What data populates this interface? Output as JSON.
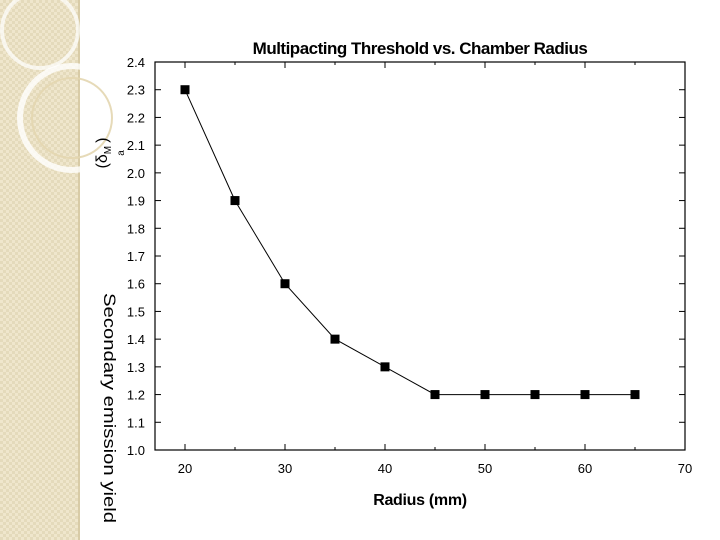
{
  "chart_data": {
    "type": "line",
    "title": "Multipacting Threshold vs. Chamber Radius",
    "xlabel": "Radius (mm)",
    "ylabel": "(δ",
    "ylabel_sub": "M",
    "ylabel_sup": "a",
    "ylabel_close": ")",
    "overlay_label": "Secondary emission yield",
    "xlim": [
      17,
      70
    ],
    "ylim": [
      1.0,
      2.4
    ],
    "x_ticks": [
      20,
      30,
      40,
      50,
      60,
      70
    ],
    "y_ticks": [
      1.0,
      1.1,
      1.2,
      1.3,
      1.4,
      1.5,
      1.6,
      1.7,
      1.8,
      1.9,
      2.0,
      2.1,
      2.2,
      2.3,
      2.4
    ],
    "x_tick_labels": [
      "20",
      "30",
      "40",
      "50",
      "60",
      "70"
    ],
    "y_tick_labels": [
      "1.0",
      "1.1",
      "1.2",
      "1.3",
      "1.4",
      "1.5",
      "1.6",
      "1.7",
      "1.8",
      "1.9",
      "2.0",
      "2.1",
      "2.2",
      "2.3",
      "2.4"
    ],
    "series": [
      {
        "x": [
          20,
          25,
          30,
          35,
          40,
          45,
          50,
          55,
          60,
          65
        ],
        "y": [
          2.3,
          1.9,
          1.6,
          1.4,
          1.3,
          1.2,
          1.2,
          1.2,
          1.2,
          1.2
        ],
        "marker": "square",
        "color": "#000000"
      }
    ],
    "grid": false,
    "legend": "none"
  }
}
